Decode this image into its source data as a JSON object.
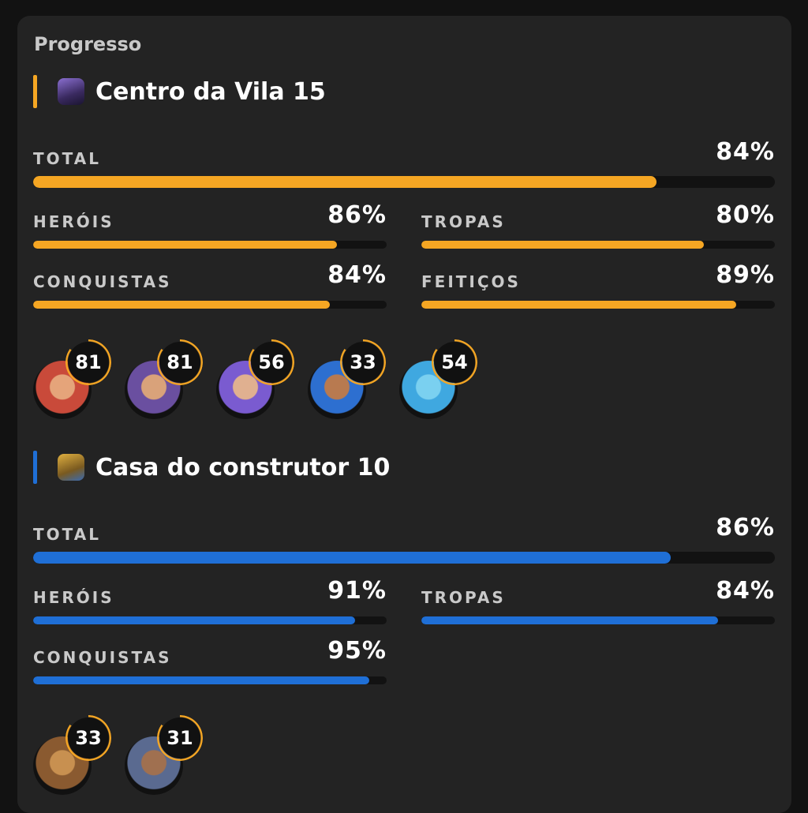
{
  "page_title": "Progresso",
  "sections": [
    {
      "title": "Centro da Vila 15",
      "icon": "town-hall-icon",
      "accent": "#f5a623",
      "total": {
        "label": "TOTAL",
        "value": "84%",
        "percent": 84
      },
      "stats": [
        {
          "label": "HERÓIS",
          "value": "86%",
          "percent": 86
        },
        {
          "label": "TROPAS",
          "value": "80%",
          "percent": 80
        },
        {
          "label": "CONQUISTAS",
          "value": "84%",
          "percent": 84
        },
        {
          "label": "FEITIÇOS",
          "value": "89%",
          "percent": 89
        }
      ],
      "heroes": [
        {
          "name": "barbarian-king",
          "level": "81",
          "colors": [
            "#c94a3a",
            "#e5a47a"
          ]
        },
        {
          "name": "archer-queen",
          "level": "81",
          "colors": [
            "#6a4fa0",
            "#d9a27a"
          ]
        },
        {
          "name": "grand-warden",
          "level": "56",
          "colors": [
            "#7a5bd0",
            "#e0b090"
          ]
        },
        {
          "name": "royal-champion",
          "level": "33",
          "colors": [
            "#2d6fd0",
            "#b87a50"
          ]
        },
        {
          "name": "minion-prince",
          "level": "54",
          "colors": [
            "#3fa8e0",
            "#7ad0f0"
          ]
        }
      ]
    },
    {
      "title": "Casa do construtor 10",
      "icon": "builder-hall-icon",
      "accent": "#1f6fd6",
      "total": {
        "label": "TOTAL",
        "value": "86%",
        "percent": 86
      },
      "stats": [
        {
          "label": "HERÓIS",
          "value": "91%",
          "percent": 91
        },
        {
          "label": "TROPAS",
          "value": "84%",
          "percent": 84
        },
        {
          "label": "CONQUISTAS",
          "value": "95%",
          "percent": 95
        }
      ],
      "heroes": [
        {
          "name": "battle-machine",
          "level": "33",
          "colors": [
            "#8a5a30",
            "#c89050"
          ]
        },
        {
          "name": "battle-copter",
          "level": "31",
          "colors": [
            "#5a6a90",
            "#a07050"
          ]
        }
      ]
    }
  ],
  "badge_ring_color": "#f5a623"
}
